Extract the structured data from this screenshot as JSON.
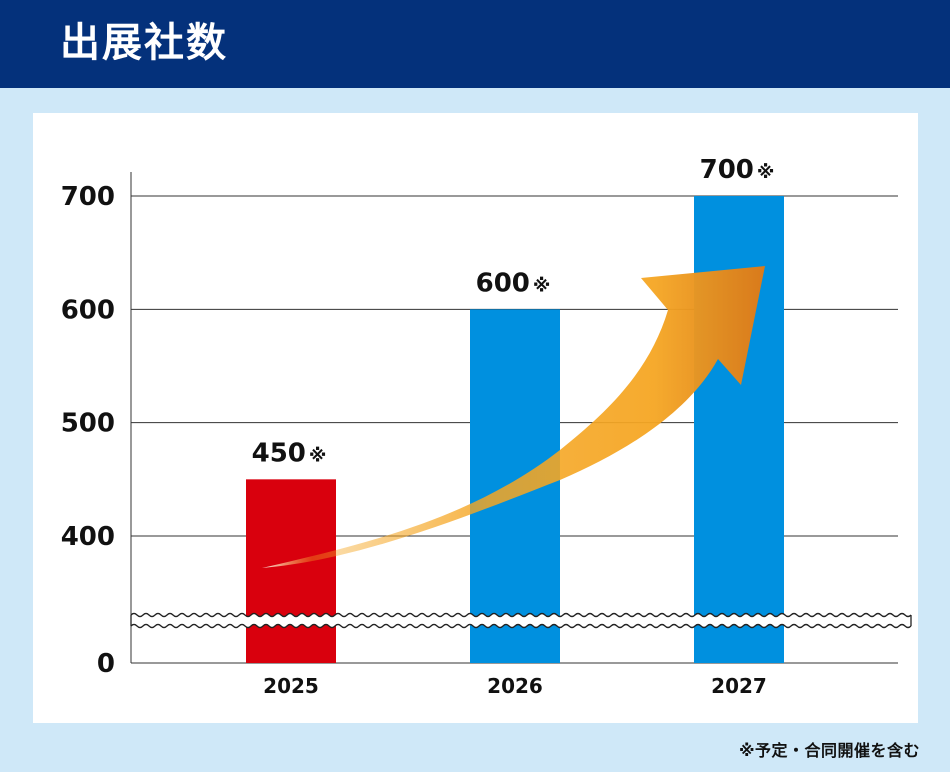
{
  "header": {
    "title": "出展社数"
  },
  "footnote": "※予定・合同開催を含む",
  "chart_data": {
    "type": "bar",
    "title": "出展社数",
    "categories": [
      "2025",
      "2026",
      "2027"
    ],
    "values": [
      450,
      600,
      700
    ],
    "value_labels": [
      "450",
      "600",
      "700"
    ],
    "value_suffix": "※",
    "y_ticks": [
      0,
      400,
      500,
      600,
      700
    ],
    "y_break": [
      0,
      400
    ],
    "ylim": [
      0,
      700
    ],
    "grid": true,
    "xlabel": "",
    "ylabel": "",
    "bar_colors": [
      "#d9000d",
      "#0090df",
      "#0090df"
    ],
    "trend_arrow": {
      "from_category": "2025",
      "to_category": "2027",
      "colors": [
        "#ffffff",
        "#f5a623",
        "#d97a1b"
      ]
    }
  }
}
